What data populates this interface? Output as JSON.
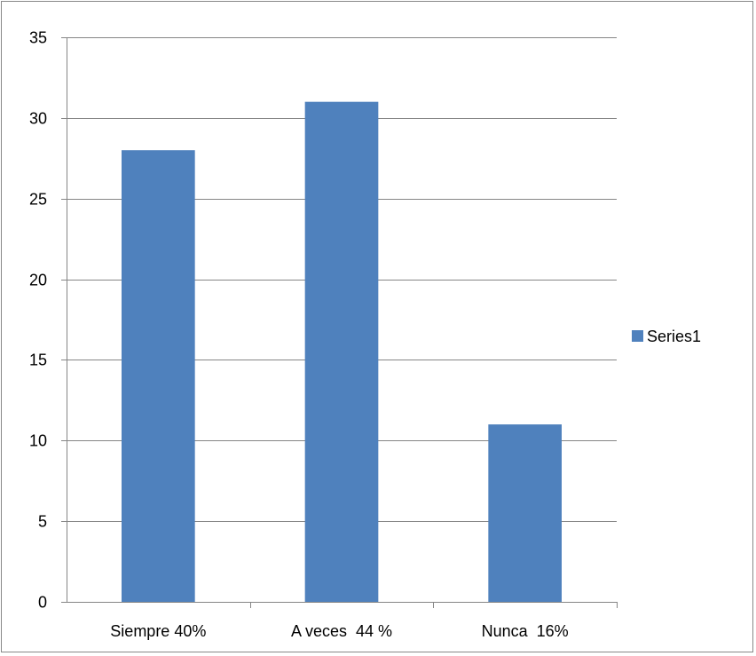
{
  "chart_data": {
    "type": "bar",
    "title": "",
    "xlabel": "",
    "ylabel": "",
    "categories": [
      "Siempre 40%",
      "A veces  44 %",
      "Nunca  16%"
    ],
    "series": [
      {
        "name": "Series1",
        "values": [
          28,
          31,
          11
        ],
        "color": "#4f81bd"
      }
    ],
    "ylim": [
      0,
      35
    ],
    "yticks": [
      0,
      5,
      10,
      15,
      20,
      25,
      30,
      35
    ],
    "grid": true,
    "legend_position": "right",
    "colors": {
      "gridline": "#868686",
      "axis": "#868686",
      "text": "#000000"
    }
  }
}
